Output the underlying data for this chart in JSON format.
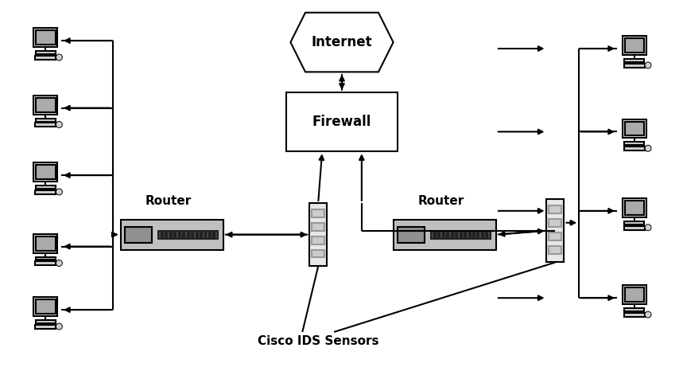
{
  "bg_color": "#ffffff",
  "line_color": "#000000",
  "box_fill": "#ffffff",
  "sensor_fill": "#e8e8e8",
  "router_fill": "#bbbbbb",
  "figsize": [
    8.59,
    4.76
  ],
  "dpi": 100,
  "internet_label": "Internet",
  "firewall_label": "Firewall",
  "router_label": "Router",
  "sensor_label": "Cisco IDS Sensors",
  "lw": 1.5,
  "arrow_ms": 10
}
